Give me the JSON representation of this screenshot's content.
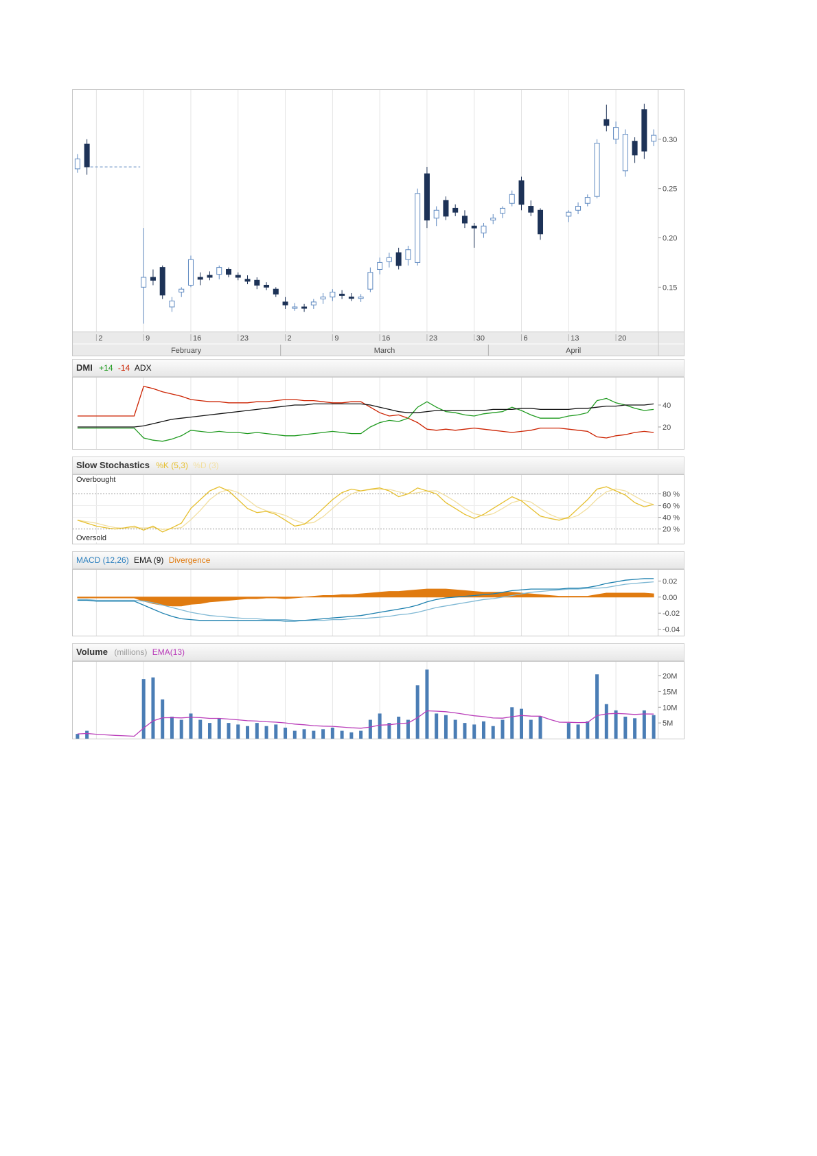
{
  "legends": {
    "dmi": {
      "title": "DMI",
      "plus": "+14",
      "minus": "-14",
      "adx": "ADX"
    },
    "stochastics": {
      "title": "Slow Stochastics",
      "k": "%K (5,3)",
      "d": "%D (3)"
    },
    "macd": {
      "macd": "MACD (12,26)",
      "ema": "EMA (9)",
      "divergence": "Divergence"
    },
    "volume": {
      "title": "Volume",
      "unit": "(millions)",
      "ema": "EMA(13)"
    }
  },
  "annotations": {
    "overbought": "Overbought",
    "oversold": "Oversold"
  },
  "colors": {
    "grid": "#e4e4e4",
    "axis_tick": "#999999",
    "strip_bg": "#eaeaea",
    "strip_line": "#b0b0b0",
    "candle_up": "#5e89c0",
    "candle_down": "#1d3257",
    "plus_di": "#1f9a1f",
    "minus_di": "#cc2200",
    "adx": "#111111",
    "stoch_k": "#e6bf2e",
    "stoch_d": "#f2dfa0",
    "stoch_band": "#9a9a9a",
    "macd_line": "#1b7fae",
    "macd_signal": "#7fb8d4",
    "macd_legend": "#2b7fbe",
    "divergence": "#e07b10",
    "volume_bar": "#4a7db5",
    "volume_ema": "#b93cb9",
    "volume_unit": "#999999",
    "header_text": "#333333"
  },
  "chart_data": {
    "type": "candlestick-multi-panel",
    "slots": 62,
    "x_ticks": [
      {
        "slot": 2,
        "label": "2"
      },
      {
        "slot": 7,
        "label": "9"
      },
      {
        "slot": 12,
        "label": "16"
      },
      {
        "slot": 17,
        "label": "23"
      },
      {
        "slot": 22,
        "label": "2"
      },
      {
        "slot": 27,
        "label": "9"
      },
      {
        "slot": 32,
        "label": "16"
      },
      {
        "slot": 37,
        "label": "23"
      },
      {
        "slot": 42,
        "label": "30"
      },
      {
        "slot": 47,
        "label": "6"
      },
      {
        "slot": 52,
        "label": "13"
      },
      {
        "slot": 57,
        "label": "20"
      }
    ],
    "months": [
      {
        "label": "February",
        "start": 2,
        "end": 21
      },
      {
        "label": "March",
        "start": 22,
        "end": 43
      },
      {
        "label": "April",
        "start": 44,
        "end": 61
      }
    ],
    "price": {
      "ylim": [
        0.105,
        0.35
      ],
      "axis_ticks": [
        {
          "v": 0.3,
          "label": "0.30"
        },
        {
          "v": 0.25,
          "label": "0.25"
        },
        {
          "v": 0.2,
          "label": "0.20"
        },
        {
          "v": 0.15,
          "label": "0.15"
        }
      ],
      "no_trade_line": {
        "from": 1,
        "to": 7,
        "value": 0.272
      },
      "ohlc": [
        [
          0.27,
          0.285,
          0.266,
          0.28
        ],
        [
          0.295,
          0.3,
          0.264,
          0.272
        ],
        null,
        null,
        null,
        null,
        null,
        [
          0.15,
          0.21,
          0.113,
          0.16
        ],
        [
          0.16,
          0.168,
          0.152,
          0.157
        ],
        [
          0.17,
          0.172,
          0.138,
          0.142
        ],
        [
          0.13,
          0.14,
          0.125,
          0.136
        ],
        [
          0.145,
          0.15,
          0.14,
          0.148
        ],
        [
          0.152,
          0.182,
          0.15,
          0.178
        ],
        [
          0.16,
          0.165,
          0.152,
          0.158
        ],
        [
          0.162,
          0.166,
          0.157,
          0.16
        ],
        [
          0.163,
          0.172,
          0.158,
          0.17
        ],
        [
          0.168,
          0.17,
          0.16,
          0.163
        ],
        [
          0.162,
          0.165,
          0.157,
          0.16
        ],
        [
          0.158,
          0.162,
          0.153,
          0.156
        ],
        [
          0.157,
          0.16,
          0.148,
          0.152
        ],
        [
          0.152,
          0.155,
          0.147,
          0.15
        ],
        [
          0.148,
          0.15,
          0.14,
          0.143
        ],
        [
          0.135,
          0.14,
          0.128,
          0.132
        ],
        [
          0.13,
          0.134,
          0.126,
          0.13
        ],
        [
          0.13,
          0.133,
          0.125,
          0.129
        ],
        [
          0.132,
          0.138,
          0.128,
          0.135
        ],
        [
          0.138,
          0.144,
          0.133,
          0.14
        ],
        [
          0.14,
          0.148,
          0.136,
          0.145
        ],
        [
          0.143,
          0.147,
          0.138,
          0.142
        ],
        [
          0.14,
          0.144,
          0.136,
          0.139
        ],
        [
          0.139,
          0.143,
          0.135,
          0.14
        ],
        [
          0.148,
          0.17,
          0.145,
          0.165
        ],
        [
          0.168,
          0.18,
          0.163,
          0.175
        ],
        [
          0.176,
          0.185,
          0.17,
          0.18
        ],
        [
          0.185,
          0.19,
          0.168,
          0.172
        ],
        [
          0.178,
          0.192,
          0.172,
          0.188
        ],
        [
          0.175,
          0.25,
          0.172,
          0.245
        ],
        [
          0.265,
          0.272,
          0.21,
          0.218
        ],
        [
          0.22,
          0.232,
          0.212,
          0.228
        ],
        [
          0.238,
          0.242,
          0.218,
          0.222
        ],
        [
          0.23,
          0.234,
          0.222,
          0.226
        ],
        [
          0.222,
          0.228,
          0.21,
          0.215
        ],
        [
          0.212,
          0.215,
          0.19,
          0.21
        ],
        [
          0.205,
          0.215,
          0.2,
          0.212
        ],
        [
          0.218,
          0.224,
          0.214,
          0.22
        ],
        [
          0.225,
          0.232,
          0.22,
          0.23
        ],
        [
          0.235,
          0.248,
          0.232,
          0.244
        ],
        [
          0.258,
          0.262,
          0.228,
          0.234
        ],
        [
          0.232,
          0.238,
          0.222,
          0.226
        ],
        [
          0.228,
          0.23,
          0.198,
          0.204
        ],
        null,
        null,
        [
          0.222,
          0.228,
          0.216,
          0.226
        ],
        [
          0.228,
          0.236,
          0.224,
          0.232
        ],
        [
          0.235,
          0.244,
          0.232,
          0.241
        ],
        [
          0.242,
          0.3,
          0.24,
          0.296
        ],
        [
          0.32,
          0.335,
          0.308,
          0.314
        ],
        [
          0.3,
          0.318,
          0.295,
          0.312
        ],
        [
          0.268,
          0.31,
          0.262,
          0.305
        ],
        [
          0.298,
          0.302,
          0.276,
          0.284
        ],
        [
          0.33,
          0.336,
          0.28,
          0.288
        ],
        [
          0.298,
          0.31,
          0.293,
          0.304
        ]
      ]
    },
    "dmi": {
      "ylim": [
        0,
        65
      ],
      "axis_ticks": [
        {
          "v": 40,
          "label": "40"
        },
        {
          "v": 20,
          "label": "20"
        }
      ],
      "plus_di": [
        19,
        19,
        19,
        19,
        19,
        19,
        19,
        10,
        8,
        7,
        9,
        12,
        17,
        16,
        15,
        16,
        15,
        15,
        14,
        15,
        14,
        13,
        12,
        12,
        13,
        14,
        15,
        16,
        15,
        14,
        14,
        20,
        24,
        26,
        25,
        28,
        38,
        43,
        38,
        34,
        33,
        31,
        30,
        32,
        33,
        34,
        38,
        35,
        31,
        28,
        28,
        28,
        30,
        31,
        33,
        44,
        46,
        42,
        40,
        37,
        35,
        36
      ],
      "minus_di": [
        30,
        30,
        30,
        30,
        30,
        30,
        30,
        57,
        55,
        52,
        50,
        48,
        45,
        44,
        43,
        43,
        42,
        42,
        42,
        43,
        43,
        44,
        45,
        45,
        44,
        44,
        43,
        42,
        42,
        43,
        43,
        38,
        33,
        30,
        31,
        28,
        24,
        18,
        17,
        18,
        17,
        18,
        19,
        18,
        17,
        16,
        15,
        16,
        17,
        19,
        19,
        19,
        18,
        17,
        16,
        11,
        10,
        12,
        13,
        15,
        16,
        15
      ],
      "adx": [
        20,
        20,
        20,
        20,
        20,
        20,
        20,
        21,
        23,
        25,
        27,
        28,
        29,
        30,
        31,
        32,
        33,
        34,
        35,
        36,
        37,
        38,
        39,
        40,
        40,
        41,
        41,
        41,
        41,
        41,
        41,
        40,
        38,
        36,
        34,
        33,
        33,
        34,
        35,
        35,
        35,
        35,
        35,
        35,
        36,
        36,
        36,
        37,
        37,
        36,
        36,
        36,
        36,
        37,
        37,
        38,
        39,
        39,
        40,
        40,
        40,
        41
      ]
    },
    "stochastics": {
      "ylim": [
        -5,
        112
      ],
      "overbought": 80,
      "oversold": 20,
      "axis_ticks": [
        {
          "v": 80,
          "label": "80 %"
        },
        {
          "v": 60,
          "label": "60 %"
        },
        {
          "v": 40,
          "label": "40 %"
        },
        {
          "v": 20,
          "label": "20 %"
        }
      ],
      "d_period": 3,
      "k": [
        35,
        30,
        25,
        22,
        20,
        22,
        25,
        18,
        25,
        15,
        22,
        30,
        55,
        70,
        85,
        92,
        85,
        70,
        55,
        48,
        50,
        45,
        35,
        25,
        28,
        40,
        55,
        70,
        82,
        88,
        85,
        88,
        90,
        85,
        75,
        80,
        90,
        85,
        80,
        65,
        55,
        45,
        38,
        45,
        55,
        65,
        75,
        68,
        55,
        42,
        38,
        35,
        40,
        55,
        70,
        88,
        92,
        85,
        78,
        65,
        58,
        62
      ]
    },
    "macd": {
      "ylim": [
        -0.048,
        0.034
      ],
      "axis_ticks": [
        {
          "v": 0.02,
          "label": "0.02"
        },
        {
          "v": 0.0,
          "label": "0.00"
        },
        {
          "v": -0.02,
          "label": "-0.02"
        },
        {
          "v": -0.04,
          "label": "-0.04"
        }
      ],
      "macd": [
        -0.004,
        -0.004,
        -0.005,
        -0.005,
        -0.005,
        -0.005,
        -0.005,
        -0.01,
        -0.015,
        -0.02,
        -0.024,
        -0.027,
        -0.028,
        -0.029,
        -0.029,
        -0.029,
        -0.029,
        -0.029,
        -0.029,
        -0.029,
        -0.029,
        -0.029,
        -0.03,
        -0.03,
        -0.029,
        -0.028,
        -0.027,
        -0.026,
        -0.025,
        -0.024,
        -0.023,
        -0.021,
        -0.019,
        -0.017,
        -0.015,
        -0.013,
        -0.01,
        -0.006,
        -0.003,
        -0.001,
        0.0,
        0.001,
        0.002,
        0.003,
        0.004,
        0.006,
        0.008,
        0.009,
        0.01,
        0.01,
        0.01,
        0.01,
        0.011,
        0.011,
        0.012,
        0.014,
        0.017,
        0.019,
        0.021,
        0.022,
        0.023,
        0.023
      ],
      "signal": [
        -0.003,
        -0.003,
        -0.004,
        -0.004,
        -0.004,
        -0.004,
        -0.004,
        -0.005,
        -0.007,
        -0.01,
        -0.013,
        -0.016,
        -0.019,
        -0.021,
        -0.023,
        -0.024,
        -0.025,
        -0.026,
        -0.027,
        -0.027,
        -0.028,
        -0.028,
        -0.028,
        -0.029,
        -0.029,
        -0.029,
        -0.029,
        -0.028,
        -0.028,
        -0.027,
        -0.027,
        -0.026,
        -0.025,
        -0.024,
        -0.022,
        -0.021,
        -0.019,
        -0.016,
        -0.013,
        -0.011,
        -0.009,
        -0.007,
        -0.005,
        -0.003,
        -0.002,
        0.0,
        0.002,
        0.004,
        0.006,
        0.007,
        0.008,
        0.009,
        0.01,
        0.01,
        0.011,
        0.011,
        0.012,
        0.014,
        0.016,
        0.017,
        0.018,
        0.019
      ]
    },
    "volume": {
      "ylim": [
        0,
        24.5
      ],
      "axis_ticks": [
        {
          "v": 20,
          "label": "20M"
        },
        {
          "v": 15,
          "label": "15M"
        },
        {
          "v": 10,
          "label": "10M"
        },
        {
          "v": 5,
          "label": "5M"
        }
      ],
      "ema_period": 13,
      "bars": [
        1.5,
        2.5,
        0,
        0,
        0,
        0,
        0,
        19,
        19.5,
        12.5,
        7,
        6,
        8,
        6,
        5,
        6.5,
        5,
        4.5,
        4,
        5,
        4,
        4.5,
        3.5,
        2.5,
        3,
        2.5,
        3,
        3.5,
        2.5,
        2,
        2.5,
        6,
        8,
        5,
        7,
        6,
        17,
        22,
        8,
        7.5,
        6,
        5,
        4.5,
        5.5,
        4,
        6,
        10,
        9.5,
        6,
        7,
        0,
        0,
        5,
        4.5,
        5.5,
        20.5,
        11,
        9,
        7,
        6.5,
        9,
        7.5
      ]
    }
  }
}
